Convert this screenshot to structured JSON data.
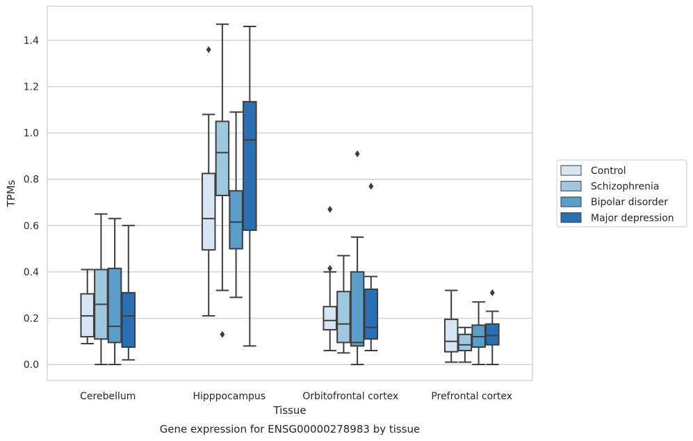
{
  "chart_data": {
    "type": "box",
    "title": "Gene expression for ENSG00000278983 by tissue",
    "xlabel": "Tissue",
    "ylabel": "TPMs",
    "ylim": [
      -0.07,
      1.55
    ],
    "yticks": [
      "0.0",
      "0.2",
      "0.4",
      "0.6",
      "0.8",
      "1.0",
      "1.2",
      "1.4"
    ],
    "grid": true,
    "legend_position": "right",
    "categories": [
      "Cerebellum",
      "Hipppocampus",
      "Orbitofrontal cortex",
      "Prefrontal cortex"
    ],
    "series": [
      {
        "name": "Control",
        "color": "#d8e6f4",
        "boxes": [
          {
            "whislo": 0.09,
            "q1": 0.12,
            "med": 0.21,
            "q3": 0.305,
            "whishi": 0.41,
            "fliers": []
          },
          {
            "whislo": 0.21,
            "q1": 0.495,
            "med": 0.63,
            "q3": 0.825,
            "whishi": 1.08,
            "fliers": [
              1.36
            ]
          },
          {
            "whislo": 0.06,
            "q1": 0.15,
            "med": 0.19,
            "q3": 0.25,
            "whishi": 0.4,
            "fliers": [
              0.67,
              0.415
            ]
          },
          {
            "whislo": 0.01,
            "q1": 0.055,
            "med": 0.1,
            "q3": 0.195,
            "whishi": 0.32,
            "fliers": []
          }
        ]
      },
      {
        "name": "Schizophrenia",
        "color": "#a0c7e0",
        "boxes": [
          {
            "whislo": 0.0,
            "q1": 0.11,
            "med": 0.26,
            "q3": 0.41,
            "whishi": 0.65,
            "fliers": []
          },
          {
            "whislo": 0.32,
            "q1": 0.73,
            "med": 0.915,
            "q3": 1.05,
            "whishi": 1.47,
            "fliers": [
              0.13
            ]
          },
          {
            "whislo": 0.05,
            "q1": 0.095,
            "med": 0.175,
            "q3": 0.315,
            "whishi": 0.47,
            "fliers": []
          },
          {
            "whislo": 0.01,
            "q1": 0.06,
            "med": 0.085,
            "q3": 0.13,
            "whishi": 0.16,
            "fliers": []
          }
        ]
      },
      {
        "name": "Bipolar disorder",
        "color": "#5c9ec9",
        "boxes": [
          {
            "whislo": 0.0,
            "q1": 0.095,
            "med": 0.165,
            "q3": 0.415,
            "whishi": 0.63,
            "fliers": []
          },
          {
            "whislo": 0.29,
            "q1": 0.5,
            "med": 0.615,
            "q3": 0.75,
            "whishi": 1.09,
            "fliers": []
          },
          {
            "whislo": 0.0,
            "q1": 0.08,
            "med": 0.095,
            "q3": 0.4,
            "whishi": 0.55,
            "fliers": [
              0.91
            ]
          },
          {
            "whislo": 0.0,
            "q1": 0.075,
            "med": 0.12,
            "q3": 0.17,
            "whishi": 0.27,
            "fliers": []
          }
        ]
      },
      {
        "name": "Major depression",
        "color": "#2870b2",
        "boxes": [
          {
            "whislo": 0.02,
            "q1": 0.075,
            "med": 0.21,
            "q3": 0.31,
            "whishi": 0.6,
            "fliers": []
          },
          {
            "whislo": 0.08,
            "q1": 0.58,
            "med": 0.97,
            "q3": 1.135,
            "whishi": 1.46,
            "fliers": []
          },
          {
            "whislo": 0.06,
            "q1": 0.11,
            "med": 0.16,
            "q3": 0.325,
            "whishi": 0.38,
            "fliers": [
              0.77
            ]
          },
          {
            "whislo": 0.0,
            "q1": 0.085,
            "med": 0.125,
            "q3": 0.175,
            "whishi": 0.23,
            "fliers": [
              0.31
            ]
          }
        ]
      }
    ]
  }
}
